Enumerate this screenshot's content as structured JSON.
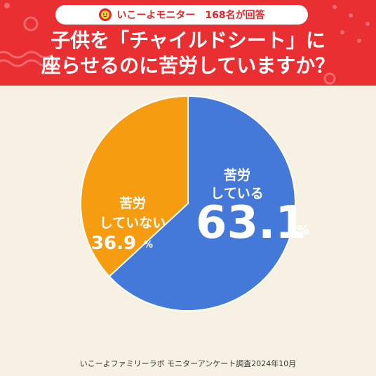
{
  "header": {
    "badge": "いこーよモニター　168名が回答",
    "title_line1": "子供を「チャイルドシート」に",
    "title_line2": "座らせるのに苦労していますか？"
  },
  "colors": {
    "header_bg": "#ea2f33",
    "page_bg": "#f7f1e3",
    "series_blue": "#4478d9",
    "series_orange": "#f59c10"
  },
  "chart_data": {
    "type": "pie",
    "series": [
      {
        "label_line1": "苦労",
        "label_line2": "している",
        "value": 63.1,
        "value_text": "63.1",
        "unit": "%",
        "color": "#4478d9"
      },
      {
        "label_line1": "苦労",
        "label_line2": "していない",
        "value": 36.9,
        "value_text": "36.9",
        "unit": "%",
        "color": "#f59c10"
      }
    ]
  },
  "footer": {
    "source": "いこーよファミリーラボ モニターアンケート調査2024年10月"
  }
}
